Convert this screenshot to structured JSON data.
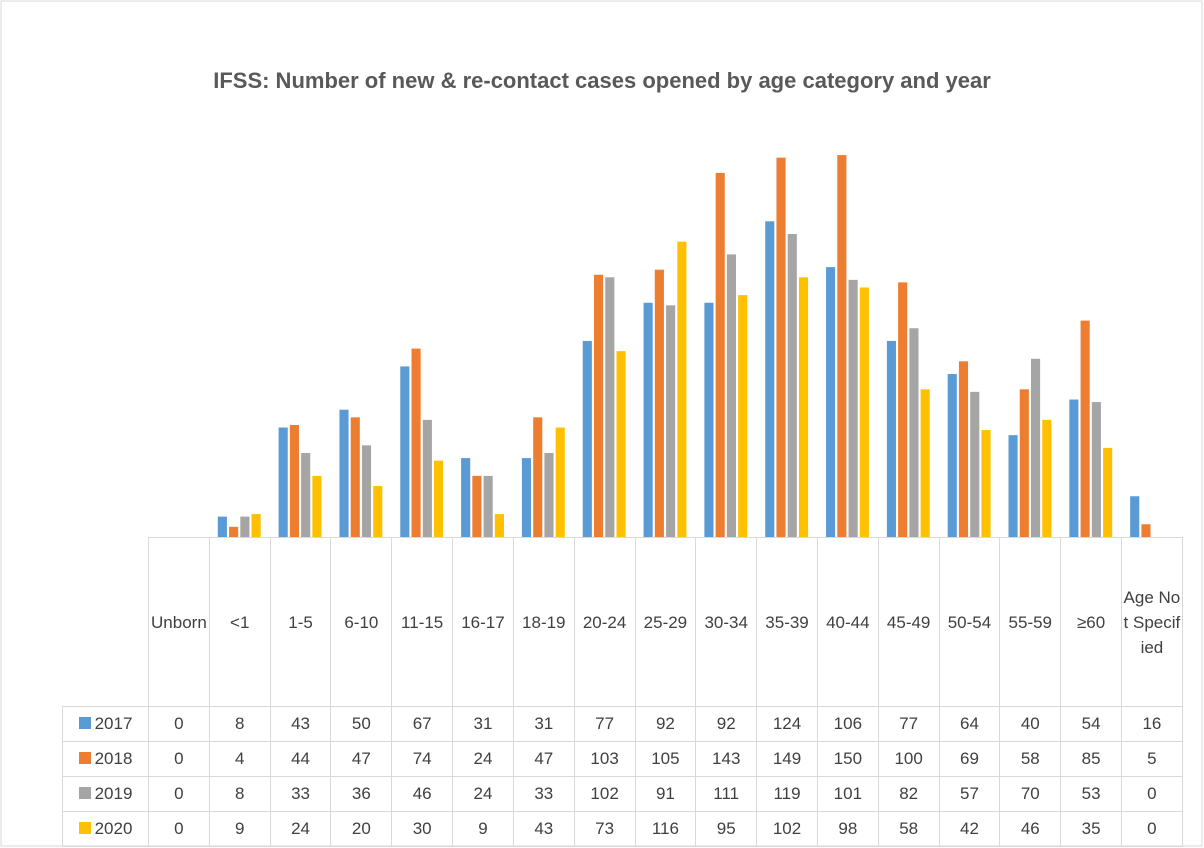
{
  "chart_data": {
    "type": "bar",
    "title": "IFSS: Number of new & re-contact cases opened by age category and year",
    "categories": [
      "Unborn",
      "<1",
      "1-5",
      "6-10",
      "11-15",
      "16-17",
      "18-19",
      "20-24",
      "25-29",
      "30-34",
      "35-39",
      "40-44",
      "45-49",
      "50-54",
      "55-59",
      "≥60",
      "Age Not Specified"
    ],
    "series": [
      {
        "name": "2017",
        "color": "#5b9bd5",
        "values": [
          0,
          8,
          43,
          50,
          67,
          31,
          31,
          77,
          92,
          92,
          124,
          106,
          77,
          64,
          40,
          54,
          16
        ]
      },
      {
        "name": "2018",
        "color": "#ed7d31",
        "values": [
          0,
          4,
          44,
          47,
          74,
          24,
          47,
          103,
          105,
          143,
          149,
          150,
          100,
          69,
          58,
          85,
          5
        ]
      },
      {
        "name": "2019",
        "color": "#a5a5a5",
        "values": [
          0,
          8,
          33,
          36,
          46,
          24,
          33,
          102,
          91,
          111,
          119,
          101,
          82,
          57,
          70,
          53,
          0
        ]
      },
      {
        "name": "2020",
        "color": "#ffc000",
        "values": [
          0,
          9,
          24,
          20,
          30,
          9,
          43,
          73,
          116,
          95,
          102,
          98,
          58,
          42,
          46,
          35,
          0
        ]
      }
    ],
    "ylim": [
      0,
      152
    ]
  }
}
